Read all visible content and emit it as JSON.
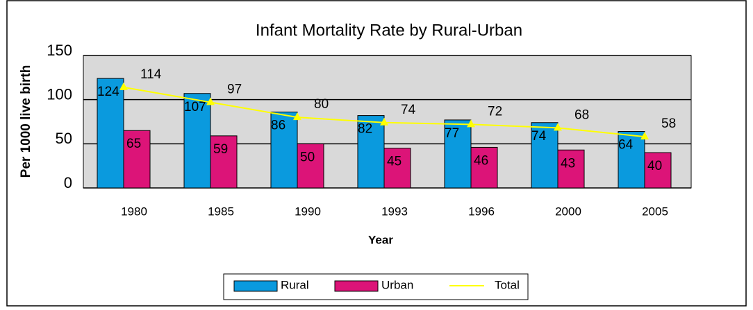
{
  "chart_data": {
    "type": "bar",
    "title": "Infant Mortality Rate by Rural-Urban",
    "x_label": "Year",
    "y_label": "Per 1000 live birth",
    "categories": [
      "1980",
      "1985",
      "1990",
      "1993",
      "1996",
      "2000",
      "2005"
    ],
    "series": [
      {
        "name": "Rural",
        "color": "#0a9ade",
        "type": "bar",
        "values": [
          124,
          107,
          86,
          82,
          77,
          74,
          64
        ]
      },
      {
        "name": "Urban",
        "color": "#dc1478",
        "type": "bar",
        "values": [
          65,
          59,
          50,
          45,
          46,
          43,
          40
        ]
      },
      {
        "name": "Total",
        "color": "#ffff00",
        "type": "line",
        "values": [
          114,
          97,
          80,
          74,
          72,
          68,
          58
        ]
      }
    ],
    "ylim": [
      0,
      150
    ],
    "yticks": [
      0,
      50,
      100,
      150
    ],
    "grid": true,
    "legend": "bottom"
  }
}
